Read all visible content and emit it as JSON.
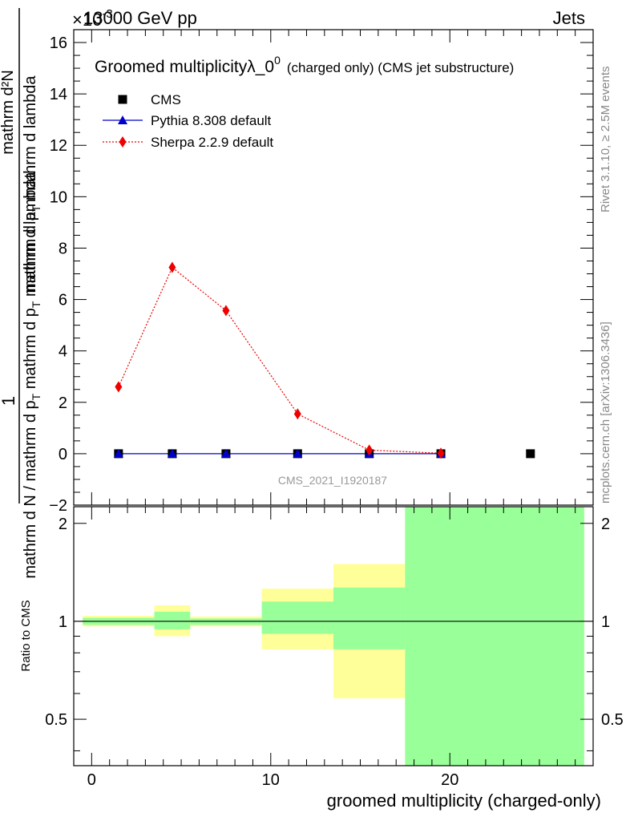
{
  "header": {
    "process": "13000 GeV pp",
    "category": "Jets",
    "exponent": "×10",
    "exponent_power": "-3"
  },
  "side": {
    "rivet": "Rivet 3.1.10, ≥ 2.5M events",
    "mcplots": "mcplots.cern.ch [arXiv:1306.3436]"
  },
  "chart_data": [
    {
      "type": "scatter",
      "title": "Groomed multiplicityλ_0",
      "title_sup": "0",
      "title_suffix": "(charged only) (CMS jet substructure)",
      "ylabel_num": "mathrm d²N",
      "ylabel_den": "mathrm d N / mathrm d p_T mathrm d p_T mathrm d lambda",
      "ylabel_prefix": "1",
      "watermark": "CMS_2021_I1920187",
      "xlim": [
        -1,
        28
      ],
      "ylim": [
        -2,
        16.5
      ],
      "y_scale_note": "×10^-3",
      "yticks": [
        -2,
        0,
        2,
        4,
        6,
        8,
        10,
        12,
        14,
        16
      ],
      "legend_position": "top-left",
      "series": [
        {
          "name": "CMS",
          "color": "#000000",
          "marker": "square",
          "x": [
            1.5,
            4.5,
            7.5,
            11.5,
            15.5,
            19.5,
            24.5
          ],
          "y": [
            0,
            0,
            0,
            0,
            0,
            0,
            0
          ]
        },
        {
          "name": "Pythia 8.308 default",
          "color": "#0000cc",
          "marker": "triangle",
          "line": "solid",
          "x": [
            1.5,
            4.5,
            7.5,
            11.5,
            15.5,
            19.5
          ],
          "y": [
            0,
            0,
            0,
            0,
            0,
            0
          ]
        },
        {
          "name": "Sherpa 2.2.9 default",
          "color": "#ee0000",
          "marker": "diamond",
          "line": "dotted",
          "x": [
            1.5,
            4.5,
            7.5,
            11.5,
            15.5,
            19.5
          ],
          "y": [
            2.6,
            7.25,
            5.57,
            1.55,
            0.14,
            0.02
          ]
        }
      ]
    },
    {
      "type": "area",
      "ylabel": "Ratio to CMS",
      "xlabel": "groomed multiplicity (charged-only)",
      "xlim": [
        -1,
        28
      ],
      "ylim": [
        0.36,
        2.25
      ],
      "y_scale": "log",
      "yticks": [
        0.5,
        1,
        2
      ],
      "xticks": [
        0,
        10,
        20
      ],
      "bins": [
        {
          "x0": -0.5,
          "x1": 3.5,
          "yellow": [
            0.965,
            1.04
          ],
          "green": [
            0.975,
            1.025
          ]
        },
        {
          "x0": 3.5,
          "x1": 5.5,
          "yellow": [
            0.9,
            1.12
          ],
          "green": [
            0.945,
            1.07
          ]
        },
        {
          "x0": 5.5,
          "x1": 9.5,
          "yellow": [
            0.965,
            1.035
          ],
          "green": [
            0.975,
            1.02
          ]
        },
        {
          "x0": 9.5,
          "x1": 13.5,
          "yellow": [
            0.82,
            1.26
          ],
          "green": [
            0.915,
            1.15
          ]
        },
        {
          "x0": 13.5,
          "x1": 17.5,
          "yellow": [
            0.58,
            1.5
          ],
          "green": [
            0.82,
            1.27
          ]
        },
        {
          "x0": 17.5,
          "x1": 27.5,
          "yellow": [
            0.36,
            2.25
          ],
          "green": [
            0.36,
            2.25
          ]
        }
      ],
      "colors": {
        "yellow": "#ffff99",
        "green": "#99ff99"
      }
    }
  ]
}
